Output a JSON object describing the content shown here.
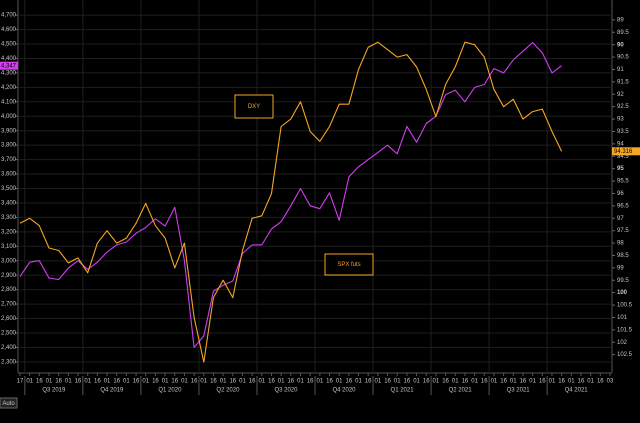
{
  "chart_data": {
    "type": "line",
    "categories": [
      "17",
      "01",
      "16",
      "01",
      "16",
      "01",
      "16",
      "01",
      "16",
      "01",
      "16",
      "01",
      "16",
      "01",
      "16",
      "01",
      "16",
      "01",
      "16",
      "01",
      "16",
      "01",
      "16",
      "01",
      "16",
      "01",
      "16",
      "01",
      "16",
      "01",
      "16",
      "01",
      "16",
      "01",
      "16",
      "01",
      "16",
      "01",
      "16",
      "01",
      "16",
      "01",
      "16",
      "01",
      "16",
      "01",
      "16",
      "01",
      "16",
      "01",
      "16",
      "01",
      "16",
      "01",
      "16",
      "01",
      "16",
      "01",
      "16",
      "01",
      "16",
      "03"
    ],
    "quarters": [
      "Q3 2019",
      "Q4 2019",
      "Q1 2020",
      "Q2 2020",
      "Q3 2020",
      "Q4 2020",
      "Q1 2021",
      "Q2 2021",
      "Q3 2021",
      "Q4 2021"
    ],
    "x_axis_button": "Auto",
    "series": [
      {
        "name": "SPX futs",
        "color": "#d03ff0",
        "axis": "y",
        "last_label": "4,347",
        "values": [
          2890,
          2990,
          3000,
          2880,
          2870,
          2950,
          3000,
          2940,
          2990,
          3060,
          3110,
          3130,
          3190,
          3230,
          3290,
          3240,
          3370,
          3000,
          2400,
          2480,
          2790,
          2830,
          2860,
          3050,
          3110,
          3110,
          3220,
          3270,
          3380,
          3500,
          3380,
          3360,
          3470,
          3280,
          3580,
          3650,
          3700,
          3750,
          3800,
          3740,
          3930,
          3820,
          3950,
          4000,
          4150,
          4180,
          4100,
          4200,
          4220,
          4330,
          4300,
          4390,
          4450,
          4510,
          4440,
          4300,
          4350,
          null,
          null,
          null,
          null,
          null
        ]
      },
      {
        "name": "DXY",
        "color": "#f5a623",
        "axis": "y2",
        "last_label": "94.316",
        "values": [
          97.2,
          97.0,
          97.3,
          98.2,
          98.3,
          98.8,
          98.6,
          99.2,
          98.0,
          97.5,
          98.0,
          97.8,
          97.2,
          96.4,
          97.3,
          97.8,
          99.0,
          98.0,
          101.0,
          102.8,
          100.2,
          99.5,
          100.2,
          98.3,
          97.0,
          96.9,
          96.0,
          93.3,
          93.0,
          92.3,
          93.5,
          93.9,
          93.3,
          92.4,
          92.4,
          91.0,
          90.1,
          89.9,
          90.2,
          90.5,
          90.4,
          90.9,
          91.8,
          92.9,
          91.6,
          90.9,
          89.9,
          90.0,
          90.5,
          91.8,
          92.5,
          92.2,
          93.0,
          92.7,
          92.6,
          93.5,
          94.3,
          null,
          null,
          null,
          null,
          null
        ]
      }
    ],
    "ylim": [
      2230,
      4770
    ],
    "yticks": [
      {
        "value": 2300,
        "label": "2,300"
      },
      {
        "value": 2400,
        "label": "2,400"
      },
      {
        "value": 2500,
        "label": "2,500"
      },
      {
        "value": 2600,
        "label": "2,600"
      },
      {
        "value": 2700,
        "label": "2,700"
      },
      {
        "value": 2800,
        "label": "2,800"
      },
      {
        "value": 2900,
        "label": "2,900"
      },
      {
        "value": 3000,
        "label": "3,000"
      },
      {
        "value": 3100,
        "label": "3,100"
      },
      {
        "value": 3200,
        "label": "3,200"
      },
      {
        "value": 3300,
        "label": "3,300"
      },
      {
        "value": 3400,
        "label": "3,400"
      },
      {
        "value": 3500,
        "label": "3,500"
      },
      {
        "value": 3600,
        "label": "3,600"
      },
      {
        "value": 3700,
        "label": "3,700"
      },
      {
        "value": 3800,
        "label": "3,800"
      },
      {
        "value": 3900,
        "label": "3,900"
      },
      {
        "value": 4000,
        "label": "4,000"
      },
      {
        "value": 4100,
        "label": "4,100"
      },
      {
        "value": 4200,
        "label": "4,200"
      },
      {
        "value": 4300,
        "label": "4,300"
      },
      {
        "value": 4400,
        "label": "4,400"
      },
      {
        "value": 4500,
        "label": "4,500"
      },
      {
        "value": 4600,
        "label": "4,600"
      },
      {
        "value": 4700,
        "label": "4,700"
      }
    ],
    "y2lim": [
      103.2,
      88.4
    ],
    "y2ticks": [
      89,
      89.5,
      90,
      90.5,
      91,
      91.5,
      92,
      92.5,
      93,
      93.5,
      94,
      94.5,
      95,
      95.5,
      96,
      96.5,
      97,
      97.5,
      98,
      98.5,
      99,
      99.5,
      100,
      100.5,
      101,
      101.5,
      102,
      102.5
    ],
    "grid": true
  }
}
